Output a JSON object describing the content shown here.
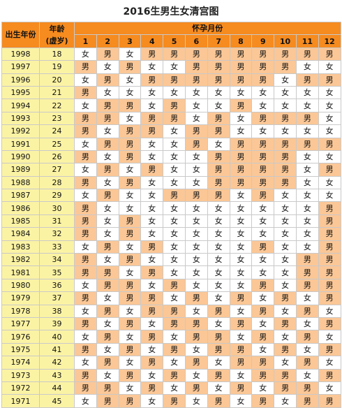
{
  "title": "2016生男生女清宫图",
  "headers": {
    "birth_year": "出生年份",
    "age_line1": "年龄",
    "age_line2": "(虚岁)",
    "months_label": "怀孕月份"
  },
  "months": [
    "1",
    "2",
    "3",
    "4",
    "5",
    "6",
    "7",
    "8",
    "9",
    "10",
    "11",
    "12"
  ],
  "colors": {
    "header_orange": "#f68b1f",
    "light_orange": "#fbc796",
    "yellow": "#fbf3a4",
    "white": "#ffffff"
  },
  "rows": [
    {
      "year": "1998",
      "age": "18",
      "cells": [
        "女",
        "男",
        "女",
        "男",
        "男",
        "男",
        "男",
        "男",
        "男",
        "男",
        "男",
        "男"
      ]
    },
    {
      "year": "1997",
      "age": "19",
      "cells": [
        "男",
        "女",
        "男",
        "女",
        "女",
        "男",
        "男",
        "男",
        "男",
        "男",
        "女",
        "女"
      ]
    },
    {
      "year": "1996",
      "age": "20",
      "cells": [
        "女",
        "男",
        "女",
        "男",
        "男",
        "男",
        "男",
        "男",
        "男",
        "女",
        "男",
        "男"
      ]
    },
    {
      "year": "1995",
      "age": "21",
      "cells": [
        "男",
        "女",
        "女",
        "女",
        "女",
        "女",
        "女",
        "女",
        "女",
        "女",
        "女",
        "女"
      ]
    },
    {
      "year": "1994",
      "age": "22",
      "cells": [
        "女",
        "男",
        "男",
        "女",
        "男",
        "女",
        "女",
        "男",
        "女",
        "女",
        "女",
        "女"
      ]
    },
    {
      "year": "1993",
      "age": "23",
      "cells": [
        "男",
        "男",
        "女",
        "男",
        "男",
        "女",
        "男",
        "女",
        "男",
        "男",
        "男",
        "女"
      ]
    },
    {
      "year": "1992",
      "age": "24",
      "cells": [
        "男",
        "女",
        "男",
        "男",
        "女",
        "男",
        "男",
        "女",
        "女",
        "女",
        "女",
        "女"
      ]
    },
    {
      "year": "1991",
      "age": "25",
      "cells": [
        "女",
        "男",
        "男",
        "女",
        "女",
        "男",
        "女",
        "男",
        "男",
        "男",
        "男",
        "男"
      ]
    },
    {
      "year": "1990",
      "age": "26",
      "cells": [
        "男",
        "女",
        "男",
        "女",
        "女",
        "女",
        "男",
        "男",
        "男",
        "男",
        "女",
        "女"
      ]
    },
    {
      "year": "1989",
      "age": "27",
      "cells": [
        "女",
        "男",
        "女",
        "男",
        "女",
        "女",
        "男",
        "男",
        "男",
        "男",
        "女",
        "男"
      ]
    },
    {
      "year": "1988",
      "age": "28",
      "cells": [
        "男",
        "女",
        "男",
        "女",
        "女",
        "女",
        "男",
        "男",
        "男",
        "男",
        "女",
        "女"
      ]
    },
    {
      "year": "1987",
      "age": "29",
      "cells": [
        "女",
        "男",
        "女",
        "女",
        "男",
        "男",
        "男",
        "女",
        "男",
        "女",
        "女",
        "女"
      ]
    },
    {
      "year": "1986",
      "age": "30",
      "cells": [
        "男",
        "女",
        "女",
        "女",
        "女",
        "女",
        "女",
        "女",
        "女",
        "女",
        "女",
        "男"
      ]
    },
    {
      "year": "1985",
      "age": "31",
      "cells": [
        "男",
        "女",
        "男",
        "女",
        "女",
        "女",
        "女",
        "女",
        "女",
        "女",
        "女",
        "男"
      ]
    },
    {
      "year": "1984",
      "age": "32",
      "cells": [
        "男",
        "女",
        "男",
        "女",
        "女",
        "女",
        "女",
        "女",
        "女",
        "女",
        "女",
        "男"
      ]
    },
    {
      "year": "1983",
      "age": "33",
      "cells": [
        "女",
        "男",
        "女",
        "男",
        "女",
        "女",
        "女",
        "女",
        "男",
        "女",
        "女",
        "男"
      ]
    },
    {
      "year": "1982",
      "age": "34",
      "cells": [
        "男",
        "女",
        "男",
        "女",
        "女",
        "女",
        "女",
        "女",
        "女",
        "女",
        "男",
        "男"
      ]
    },
    {
      "year": "1981",
      "age": "35",
      "cells": [
        "男",
        "男",
        "女",
        "男",
        "女",
        "女",
        "女",
        "女",
        "女",
        "女",
        "男",
        "男"
      ]
    },
    {
      "year": "1980",
      "age": "36",
      "cells": [
        "女",
        "男",
        "男",
        "女",
        "男",
        "女",
        "女",
        "女",
        "男",
        "女",
        "男",
        "男"
      ]
    },
    {
      "year": "1979",
      "age": "37",
      "cells": [
        "男",
        "女",
        "男",
        "男",
        "女",
        "男",
        "女",
        "男",
        "女",
        "男",
        "女",
        "男"
      ]
    },
    {
      "year": "1978",
      "age": "38",
      "cells": [
        "女",
        "男",
        "女",
        "男",
        "男",
        "女",
        "男",
        "女",
        "男",
        "女",
        "男",
        "女"
      ]
    },
    {
      "year": "1977",
      "age": "39",
      "cells": [
        "男",
        "女",
        "男",
        "女",
        "男",
        "男",
        "女",
        "男",
        "女",
        "男",
        "女",
        "男"
      ]
    },
    {
      "year": "1976",
      "age": "40",
      "cells": [
        "女",
        "男",
        "女",
        "男",
        "女",
        "男",
        "男",
        "女",
        "男",
        "女",
        "男",
        "女"
      ]
    },
    {
      "year": "1975",
      "age": "41",
      "cells": [
        "男",
        "女",
        "男",
        "女",
        "男",
        "女",
        "男",
        "男",
        "女",
        "男",
        "女",
        "男"
      ]
    },
    {
      "year": "1974",
      "age": "42",
      "cells": [
        "女",
        "男",
        "女",
        "男",
        "女",
        "男",
        "女",
        "男",
        "男",
        "女",
        "男",
        "女"
      ]
    },
    {
      "year": "1973",
      "age": "43",
      "cells": [
        "男",
        "女",
        "男",
        "女",
        "男",
        "女",
        "男",
        "女",
        "男",
        "男",
        "女",
        "男"
      ]
    },
    {
      "year": "1972",
      "age": "44",
      "cells": [
        "男",
        "男",
        "女",
        "男",
        "女",
        "男",
        "女",
        "男",
        "女",
        "男",
        "男",
        "女"
      ]
    },
    {
      "year": "1971",
      "age": "45",
      "cells": [
        "女",
        "男",
        "男",
        "女",
        "男",
        "女",
        "男",
        "女",
        "男",
        "女",
        "男",
        "男"
      ]
    }
  ]
}
